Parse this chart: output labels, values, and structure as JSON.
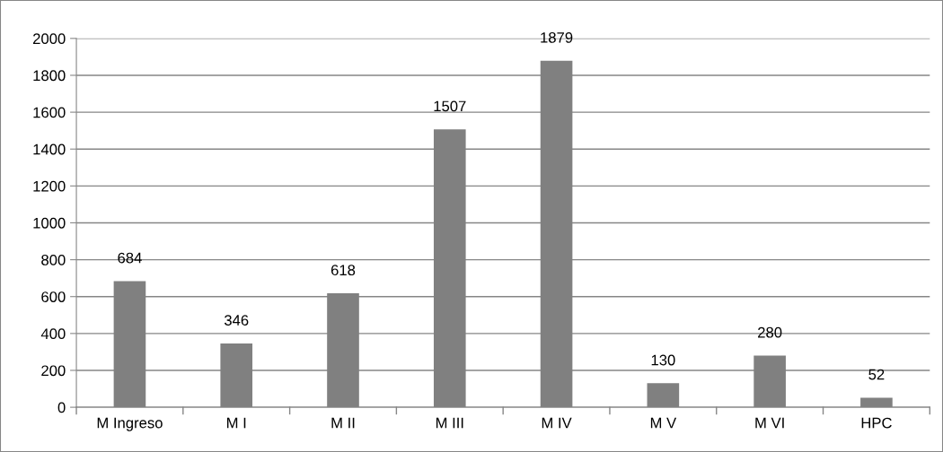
{
  "chart_data": {
    "type": "bar",
    "categories": [
      "M Ingreso",
      "M I",
      "M II",
      "M III",
      "M IV",
      "M V",
      "M VI",
      "HPC"
    ],
    "values": [
      684,
      346,
      618,
      1507,
      1879,
      130,
      280,
      52
    ],
    "color": "#808080",
    "ylim": [
      0,
      2000
    ],
    "yticks": [
      0,
      200,
      400,
      600,
      800,
      1000,
      1200,
      1400,
      1600,
      1800,
      2000
    ],
    "grid": "y",
    "data_labels": true,
    "legend": false
  }
}
